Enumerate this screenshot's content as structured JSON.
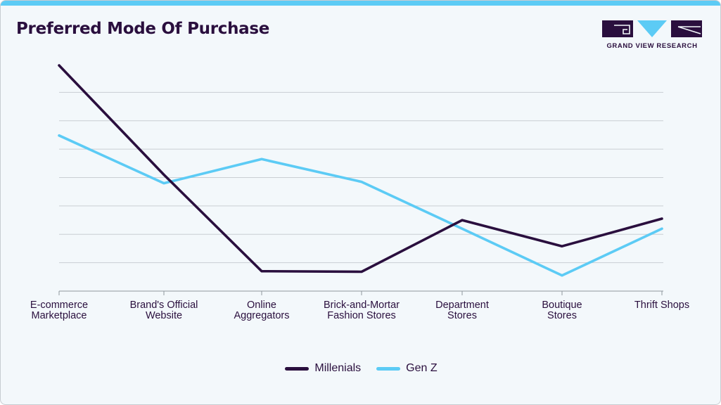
{
  "header": {
    "title": "Preferred Mode Of Purchase"
  },
  "brand": {
    "name": "GRAND VIEW RESEARCH",
    "accent": "#5ccbf5",
    "dark": "#2a0f3e"
  },
  "chart_data": {
    "type": "line",
    "title": "Preferred Mode Of Purchase",
    "xlabel": "",
    "ylabel": "",
    "ylim": [
      0,
      8
    ],
    "grid": true,
    "legend": "bottom-center",
    "categories": [
      [
        "E-commerce",
        "Marketplace"
      ],
      [
        "Brand's Official",
        "Website"
      ],
      [
        "Online",
        "Aggregators"
      ],
      [
        "Brick-and-Mortar",
        "Fashion Stores"
      ],
      [
        "Department",
        "Stores"
      ],
      [
        "Boutique",
        "Stores"
      ],
      [
        "Thrift Shops"
      ]
    ],
    "series": [
      {
        "name": "Millenials",
        "color": "#2a0f3e",
        "values": [
          7.95,
          4.1,
          0.7,
          0.68,
          2.5,
          1.58,
          2.55
        ]
      },
      {
        "name": "Gen Z",
        "color": "#5ccbf5",
        "values": [
          5.48,
          3.8,
          4.65,
          3.85,
          2.2,
          0.55,
          2.2
        ]
      }
    ]
  }
}
